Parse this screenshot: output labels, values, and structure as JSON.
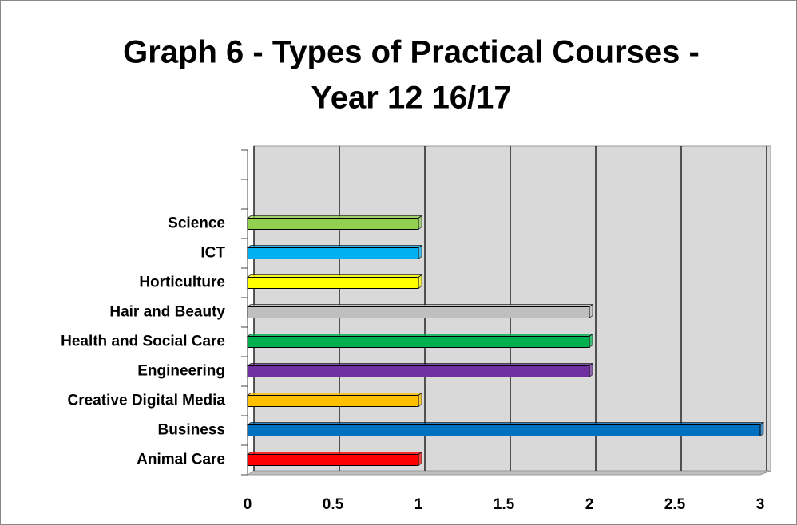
{
  "chart_data": {
    "type": "bar",
    "orientation": "horizontal",
    "title": [
      "Graph 6 - Types of Practical Courses -",
      "Year 12 16/17"
    ],
    "categories": [
      "Animal Care",
      "Business",
      "Creative Digital Media",
      "Engineering",
      "Health and Social Care",
      "Hair and Beauty",
      "Horticulture",
      "ICT",
      "Science",
      null,
      null
    ],
    "values": [
      1,
      3,
      1,
      2,
      2,
      2,
      1,
      1,
      1,
      null,
      null
    ],
    "colors": [
      "#ff0000",
      "#0070c0",
      "#ffc000",
      "#7030a0",
      "#00b050",
      "#bfbfbf",
      "#ffff00",
      "#00b0f0",
      "#92d050",
      null,
      null
    ],
    "xlim": [
      0,
      3
    ],
    "xticks": [
      0,
      0.5,
      1,
      1.5,
      2,
      2.5,
      3
    ],
    "grid": true
  }
}
